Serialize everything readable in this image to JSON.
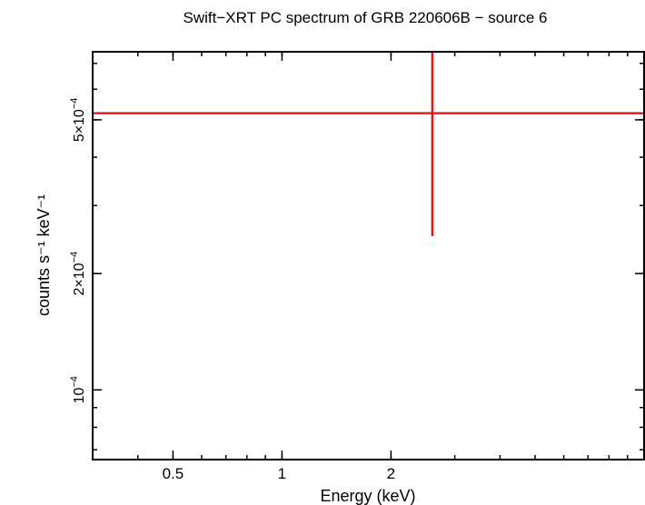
{
  "chart_data": {
    "type": "scatter",
    "title": "Swift−XRT PC spectrum of GRB 220606B − source 6",
    "xlabel": "Energy (keV)",
    "ylabel": "counts s⁻¹ keV⁻¹",
    "x_scale": "log",
    "y_scale": "log",
    "xlim": [
      0.3,
      10.0
    ],
    "ylim": [
      6.6e-05,
      0.00075
    ],
    "x_ticks": [
      {
        "value": 0.5,
        "label": "0.5"
      },
      {
        "value": 1,
        "label": "1"
      },
      {
        "value": 2,
        "label": "2"
      }
    ],
    "y_ticks": [
      {
        "value": 0.0001,
        "mantissa": "",
        "exponent": "−4",
        "label": "10−4"
      },
      {
        "value": 0.0002,
        "mantissa": "2×",
        "exponent": "−4",
        "label": "2×10−4"
      },
      {
        "value": 0.0005,
        "mantissa": "5×",
        "exponent": "−4",
        "label": "5×10−4"
      }
    ],
    "series": [
      {
        "color": "#ff0000",
        "points": [
          {
            "x": 2.6,
            "y": 0.00052,
            "xerr_low": 0.3,
            "xerr_high": 10.0,
            "yerr_low": 0.00025,
            "yerr_high": 0.00075
          }
        ]
      }
    ]
  }
}
